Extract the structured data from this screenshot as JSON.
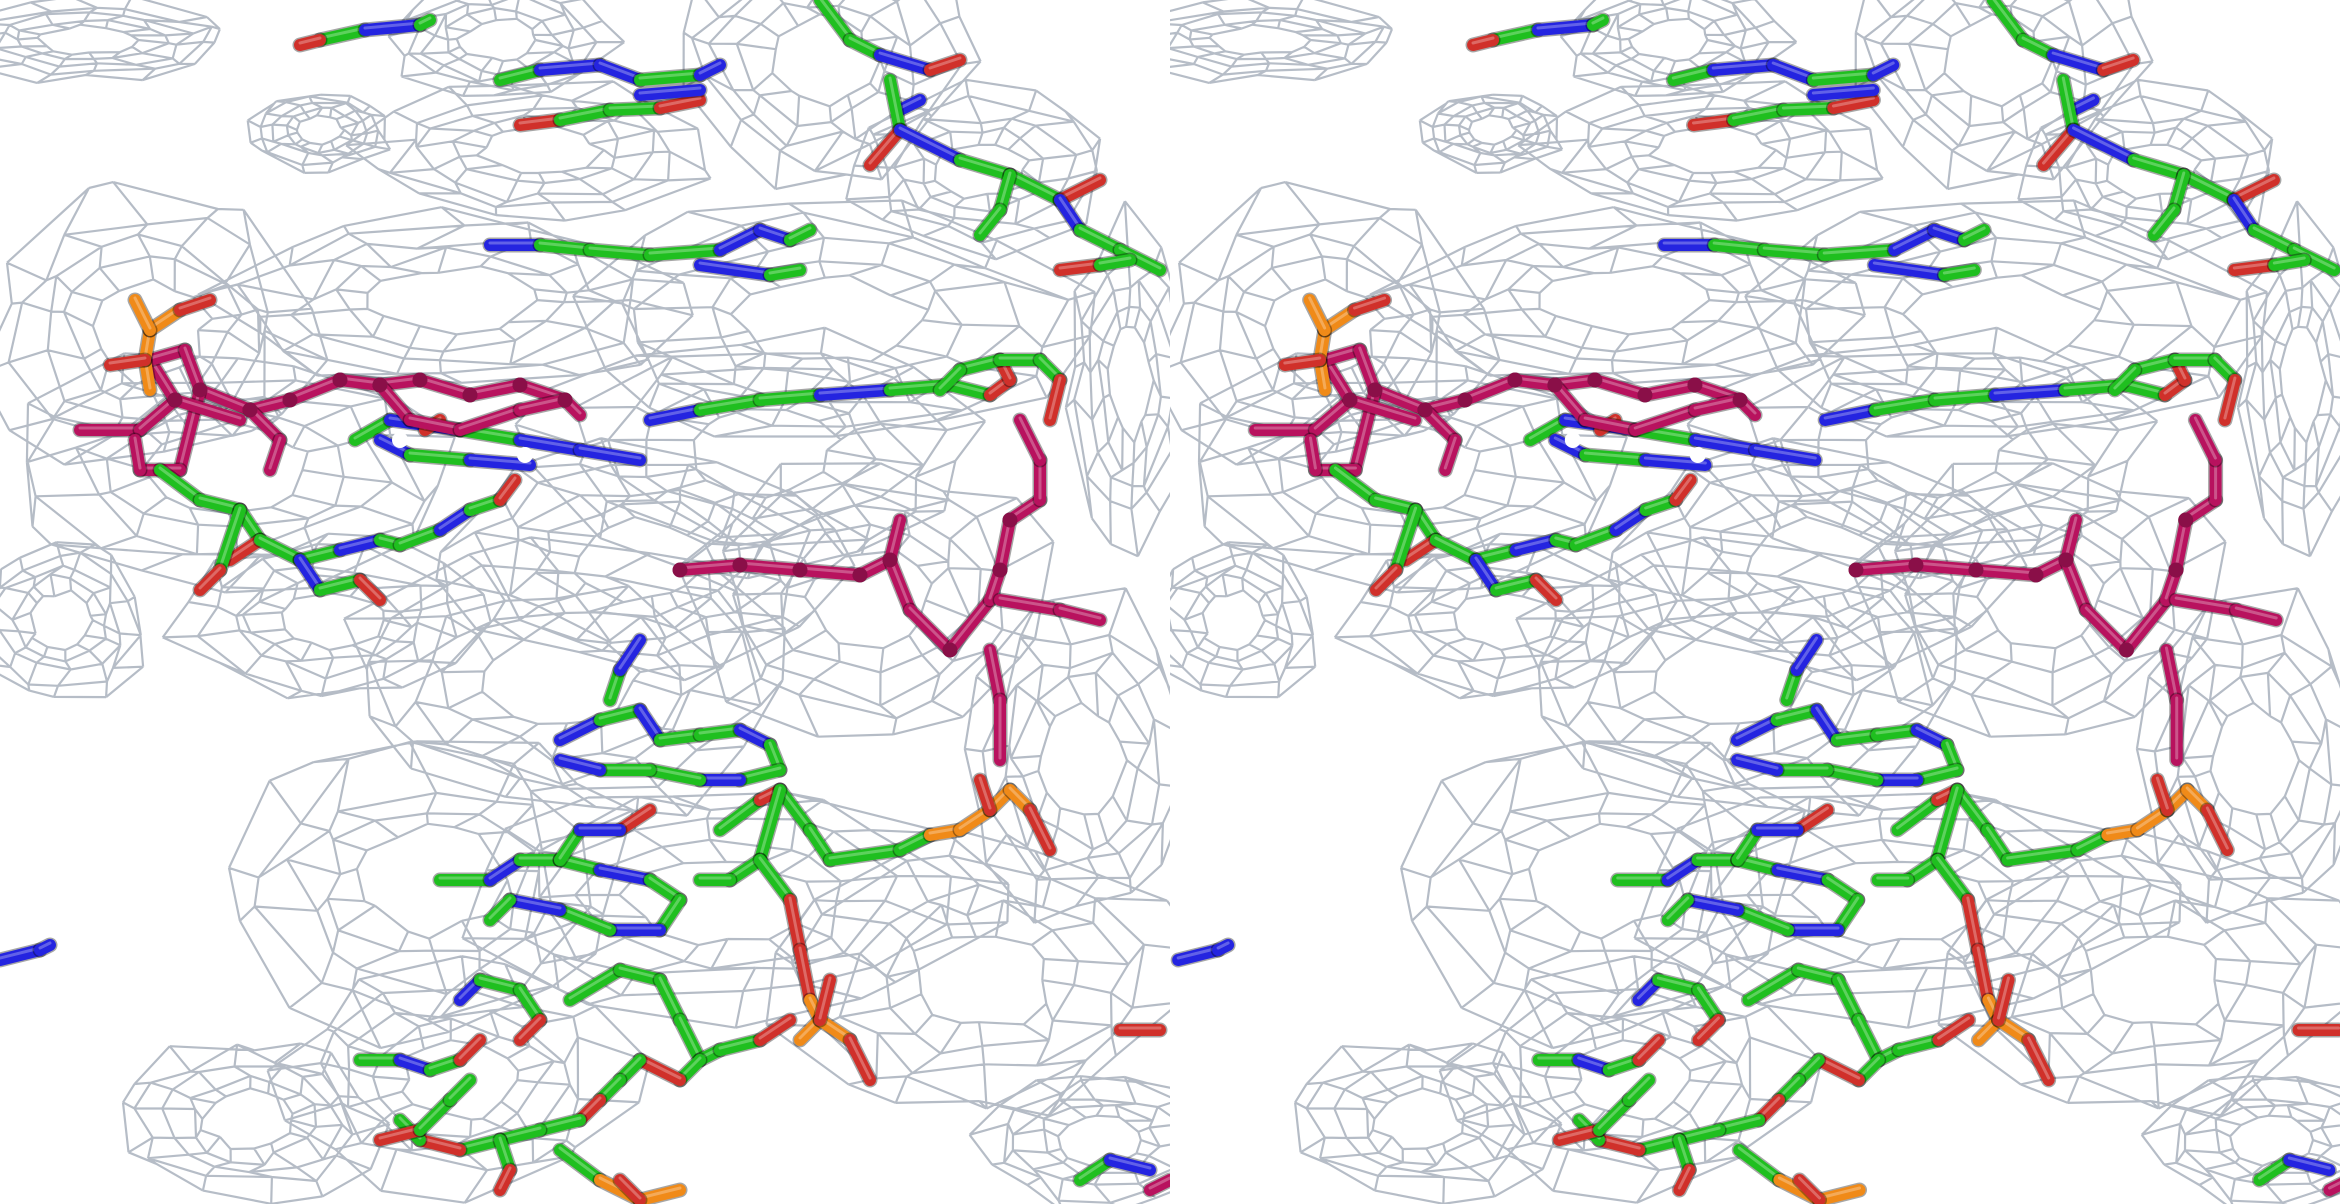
{
  "figure": {
    "kind": "stereo pair",
    "views": [
      "left-eye",
      "right-eye"
    ]
  },
  "colors": {
    "background": "#ffffff",
    "density_mesh": "#a9b1bd",
    "carbon_green": "#1fbf1f",
    "carbon_dark_green": "#0f8f12",
    "nitrogen_blue": "#2424e0",
    "oxygen_red": "#d0302a",
    "phosphorus_orange": "#f08a18",
    "ligand_magenta": "#b8125e",
    "ligand_dark": "#8a0f48"
  }
}
